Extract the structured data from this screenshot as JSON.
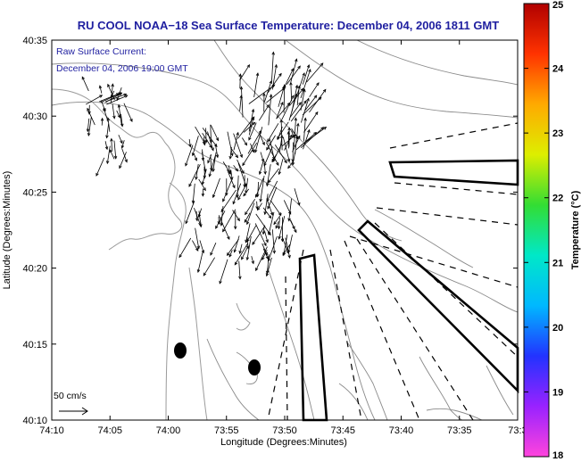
{
  "title": "RU COOL  NOAA−18  Sea Surface Temperature:  December 04, 2006 1811 GMT",
  "subtitle_line1": "Raw Surface Current:",
  "subtitle_line2": "December 04, 2006 19:00 GMT",
  "xlabel": "Longitude (Degrees:Minutes)",
  "ylabel": "Latitude (Degrees:Minutes)",
  "x_ticks": [
    "74:10",
    "74:05",
    "74:00",
    "73:55",
    "73:50",
    "73:45",
    "73:40",
    "73:35",
    "73:3"
  ],
  "y_ticks": [
    "40:35",
    "40:30",
    "40:25",
    "40:20",
    "40:15",
    "40:10"
  ],
  "scale_label": "50 cm/s",
  "colorbar": {
    "label": "Temperature (°C)",
    "ticks": [
      "25",
      "24",
      "23",
      "22",
      "21",
      "20",
      "19",
      "18"
    ],
    "range": [
      18,
      25
    ],
    "colors": [
      "#ff44dd",
      "#9922ff",
      "#2233ff",
      "#00b8ff",
      "#00e8c8",
      "#33dd33",
      "#ddee00",
      "#ffaa00",
      "#ff3300",
      "#b00000"
    ]
  },
  "chart_data": {
    "type": "map",
    "title": "RU COOL  NOAA−18  Sea Surface Temperature:  December 04, 2006 1811 GMT",
    "xlabel": "Longitude (Degrees:Minutes)",
    "ylabel": "Latitude (Degrees:Minutes)",
    "xlim": [
      "74:10",
      "73:30"
    ],
    "ylim": [
      "40:10",
      "40:35"
    ],
    "features": {
      "black_dots": 2,
      "dashed_lines": 10,
      "solid_boxes": 3,
      "current_vectors": "raw surface current arrows"
    }
  }
}
